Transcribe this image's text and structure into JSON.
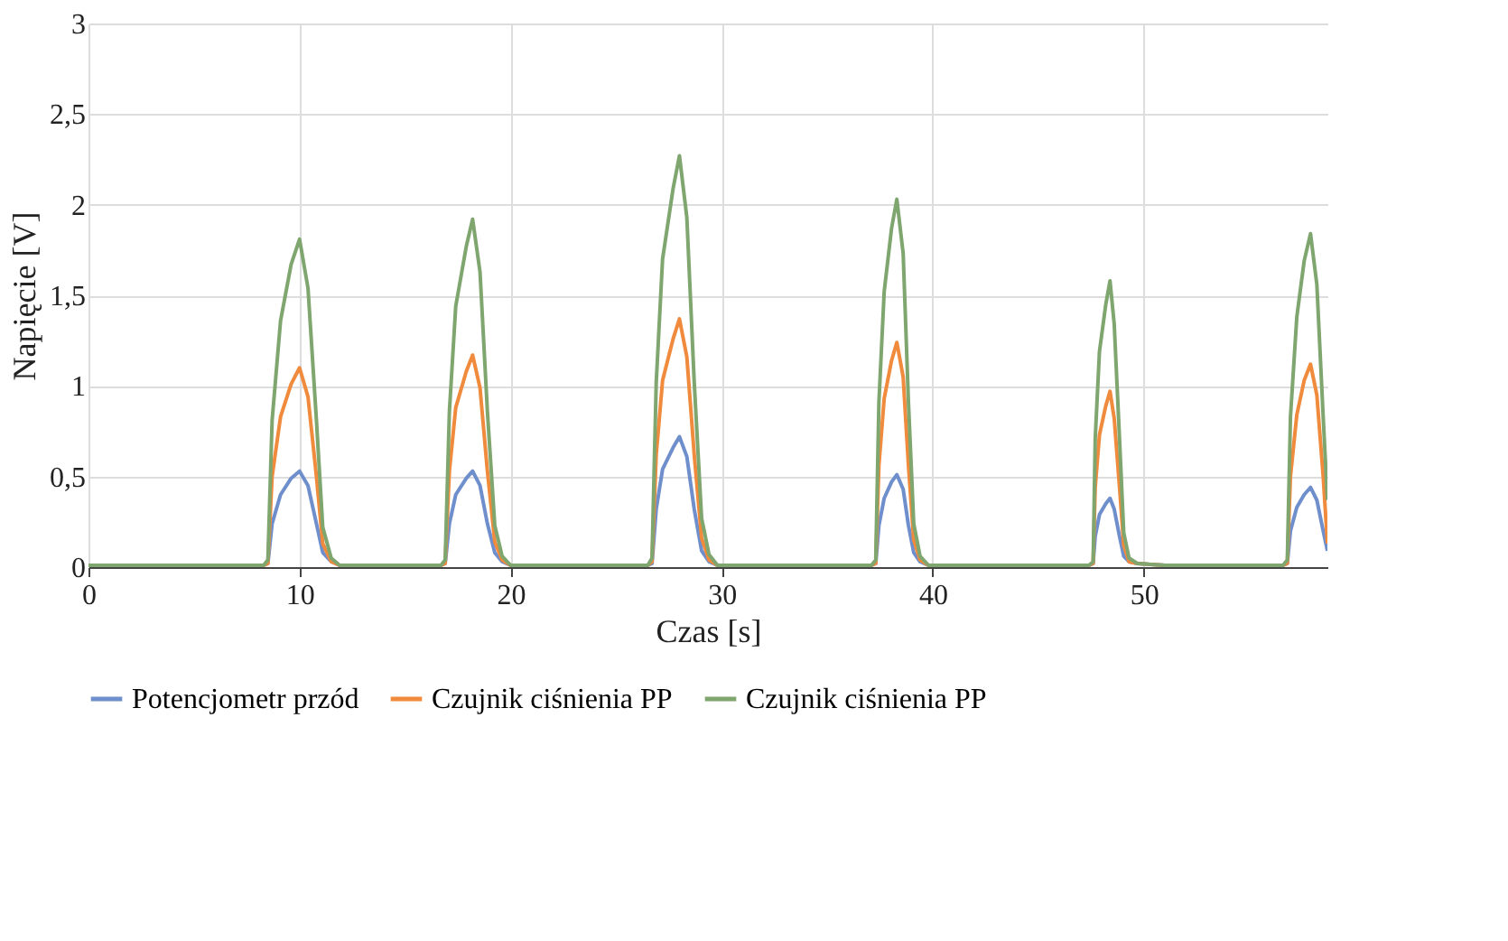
{
  "chart_data": {
    "type": "line",
    "xlabel": "Czas [s]",
    "ylabel": "Napięcie [V]",
    "xlim": [
      0,
      58.7
    ],
    "xticks": [
      0,
      10,
      20,
      30,
      40,
      50
    ],
    "ylim": [
      0,
      3
    ],
    "yticks": [
      0,
      {
        "value": 0.5,
        "label": "0,5"
      },
      1,
      {
        "value": 1.5,
        "label": "1,5"
      },
      2,
      {
        "value": 2.5,
        "label": "2,5"
      },
      3
    ],
    "grid": true,
    "legend": "bottom",
    "line_style": "solid",
    "marker": "none",
    "x": [
      0,
      8.3,
      8.5,
      8.7,
      9.1,
      9.6,
      10.0,
      10.4,
      10.8,
      11.1,
      11.5,
      11.9,
      16.7,
      16.9,
      17.1,
      17.4,
      17.9,
      18.2,
      18.55,
      18.9,
      19.25,
      19.6,
      20.0,
      26.5,
      26.7,
      26.9,
      27.2,
      27.7,
      28.0,
      28.35,
      28.7,
      29.05,
      29.4,
      29.8,
      37.1,
      37.3,
      37.45,
      37.7,
      38.05,
      38.3,
      38.6,
      38.85,
      39.1,
      39.4,
      39.8,
      47.4,
      47.6,
      47.7,
      47.9,
      48.2,
      48.4,
      48.6,
      48.85,
      49.05,
      49.3,
      49.7,
      51.0,
      56.6,
      56.8,
      56.95,
      57.25,
      57.6,
      57.9,
      58.2,
      58.5,
      58.7
    ],
    "series": [
      {
        "name": "Potencjometr przód",
        "color": "#6f8fcc",
        "values": [
          0.01,
          0.01,
          0.02,
          0.24,
          0.4,
          0.49,
          0.53,
          0.45,
          0.24,
          0.08,
          0.03,
          0.01,
          0.01,
          0.02,
          0.24,
          0.4,
          0.49,
          0.53,
          0.45,
          0.24,
          0.08,
          0.03,
          0.01,
          0.01,
          0.02,
          0.32,
          0.54,
          0.66,
          0.72,
          0.61,
          0.32,
          0.09,
          0.03,
          0.01,
          0.01,
          0.02,
          0.23,
          0.38,
          0.47,
          0.51,
          0.43,
          0.23,
          0.08,
          0.03,
          0.01,
          0.01,
          0.02,
          0.17,
          0.29,
          0.35,
          0.38,
          0.32,
          0.17,
          0.06,
          0.03,
          0.02,
          0.01,
          0.01,
          0.02,
          0.2,
          0.33,
          0.4,
          0.44,
          0.37,
          0.2,
          0.09
        ]
      },
      {
        "name": "Czujnik ciśnienia PP",
        "color": "#f08a3c",
        "values": [
          0.01,
          0.01,
          0.02,
          0.5,
          0.83,
          1.01,
          1.1,
          0.94,
          0.5,
          0.13,
          0.03,
          0.01,
          0.01,
          0.02,
          0.53,
          0.88,
          1.08,
          1.17,
          0.99,
          0.53,
          0.14,
          0.04,
          0.01,
          0.01,
          0.03,
          0.62,
          1.03,
          1.26,
          1.37,
          1.16,
          0.62,
          0.16,
          0.04,
          0.01,
          0.01,
          0.02,
          0.56,
          0.93,
          1.14,
          1.24,
          1.05,
          0.56,
          0.15,
          0.04,
          0.01,
          0.01,
          0.02,
          0.44,
          0.73,
          0.89,
          0.97,
          0.82,
          0.44,
          0.12,
          0.03,
          0.02,
          0.01,
          0.01,
          0.02,
          0.5,
          0.84,
          1.03,
          1.12,
          0.95,
          0.5,
          0.13
        ]
      },
      {
        "name": "Czujnik ciśnienia PP",
        "color": "#7fa66e",
        "values": [
          0.01,
          0.01,
          0.04,
          0.81,
          1.36,
          1.67,
          1.81,
          1.54,
          0.81,
          0.22,
          0.05,
          0.01,
          0.01,
          0.04,
          0.86,
          1.44,
          1.77,
          1.92,
          1.63,
          0.86,
          0.23,
          0.06,
          0.01,
          0.01,
          0.05,
          1.02,
          1.7,
          2.09,
          2.27,
          1.93,
          1.02,
          0.27,
          0.07,
          0.01,
          0.01,
          0.04,
          0.91,
          1.52,
          1.87,
          2.03,
          1.73,
          0.91,
          0.24,
          0.06,
          0.01,
          0.01,
          0.03,
          0.71,
          1.19,
          1.45,
          1.58,
          1.34,
          0.71,
          0.19,
          0.05,
          0.02,
          0.01,
          0.01,
          0.04,
          0.83,
          1.38,
          1.69,
          1.84,
          1.56,
          0.83,
          0.37
        ]
      }
    ]
  }
}
